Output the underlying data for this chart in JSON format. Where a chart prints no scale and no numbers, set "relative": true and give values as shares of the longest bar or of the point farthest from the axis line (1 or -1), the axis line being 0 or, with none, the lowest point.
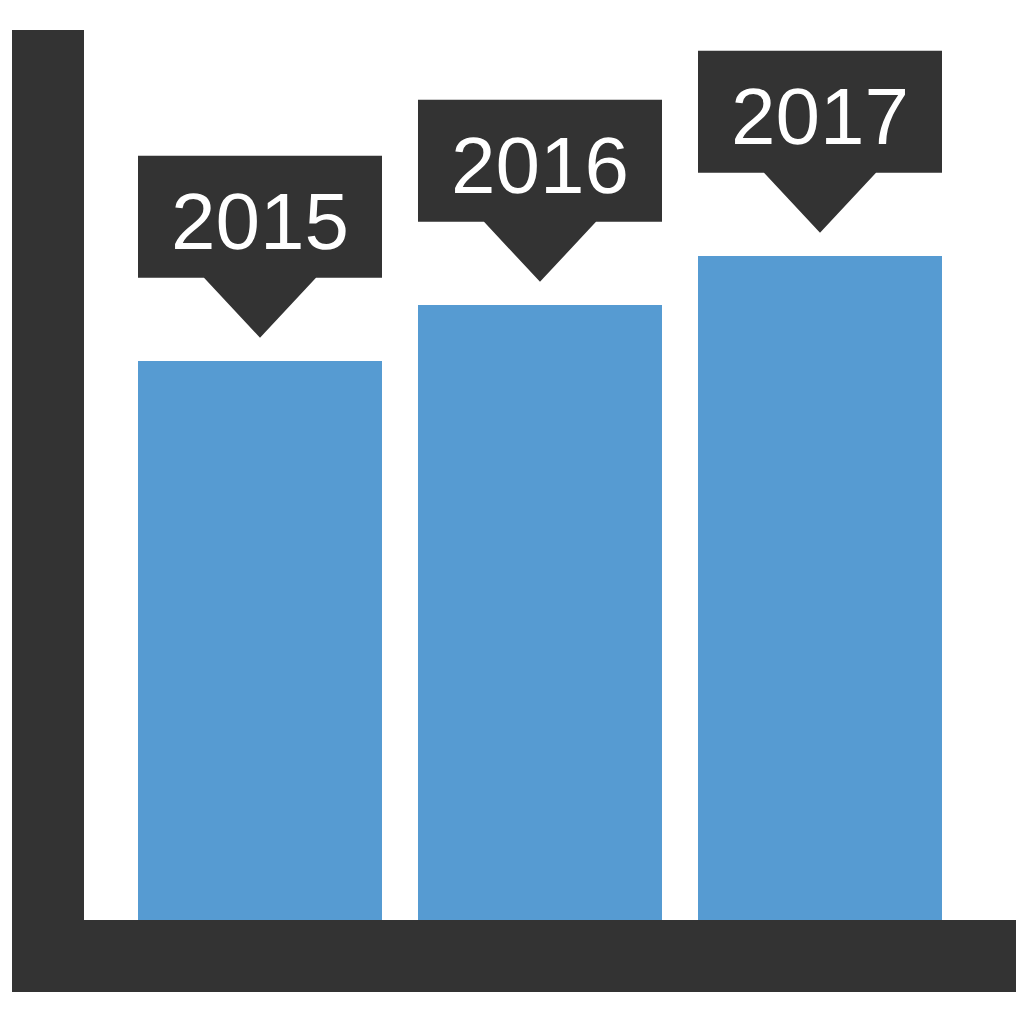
{
  "chart_data": {
    "type": "bar",
    "categories": [
      "2015",
      "2016",
      "2017"
    ],
    "values": [
      0.85,
      0.93,
      1
    ],
    "relative": true,
    "color": "#569bd2",
    "tick_labels": false
  }
}
